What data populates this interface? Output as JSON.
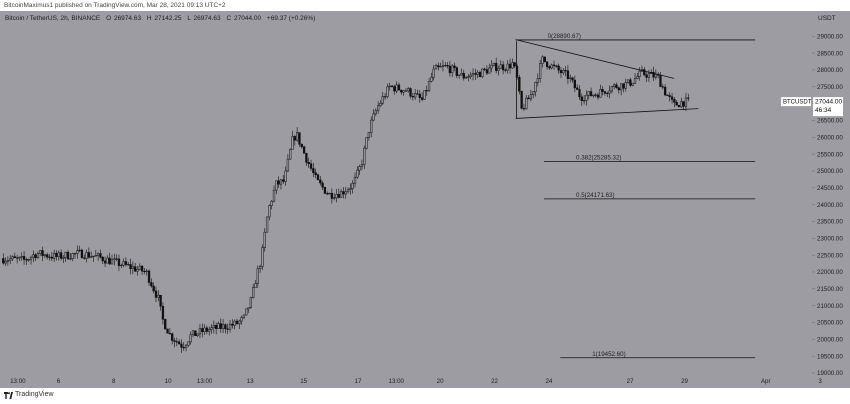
{
  "header": {
    "publish_line": "BitcoinMaximus1 published on TradingView.com, Mar 28, 2021 09:13 UTC+2"
  },
  "footer": {
    "brand": "TradingView"
  },
  "colors": {
    "background": "#9c9ca2",
    "candle": "#111111",
    "line": "#111111",
    "label_bg": "#ffffff",
    "label_text": "#111111",
    "axis_text": "#222222"
  },
  "chart_data": {
    "type": "candlestick",
    "legend": {
      "symbol": "Bitcoin / TetherUS, 2h, BINANCE",
      "o_label": "O",
      "o": "26974.63",
      "h_label": "H",
      "h": "27142.25",
      "l_label": "L",
      "l": "26974.63",
      "c_label": "C",
      "c": "27044.00",
      "change": "+69.37 (+0.26%)"
    },
    "currency": "USDT",
    "ylim": [
      19000,
      29750
    ],
    "y_ticks": [
      {
        "value": 29000,
        "label": "29000.00"
      },
      {
        "value": 28500,
        "label": "28500.00"
      },
      {
        "value": 28000,
        "label": "28000.00"
      },
      {
        "value": 27500,
        "label": "27500.00"
      },
      {
        "value": 27000,
        "label": "27000.00"
      },
      {
        "value": 26500,
        "label": "26500.00"
      },
      {
        "value": 26000,
        "label": "26000.00"
      },
      {
        "value": 25500,
        "label": "25500.00"
      },
      {
        "value": 25000,
        "label": "25000.00"
      },
      {
        "value": 24500,
        "label": "24500.00"
      },
      {
        "value": 24000,
        "label": "24000.00"
      },
      {
        "value": 23500,
        "label": "23500.00"
      },
      {
        "value": 23000,
        "label": "23000.00"
      },
      {
        "value": 22500,
        "label": "22500.00"
      },
      {
        "value": 22000,
        "label": "22000.00"
      },
      {
        "value": 21500,
        "label": "21500.00"
      },
      {
        "value": 21000,
        "label": "21000.00"
      },
      {
        "value": 20500,
        "label": "20500.00"
      },
      {
        "value": 20000,
        "label": "20000.00"
      },
      {
        "value": 19500,
        "label": "19500.00"
      },
      {
        "value": 19000,
        "label": "19000.00"
      }
    ],
    "x_ticks": [
      {
        "label": "13:00",
        "pos": 0.022
      },
      {
        "label": "6",
        "pos": 0.072
      },
      {
        "label": "8",
        "pos": 0.14
      },
      {
        "label": "10",
        "pos": 0.207
      },
      {
        "label": "13:00",
        "pos": 0.252
      },
      {
        "label": "13",
        "pos": 0.308
      },
      {
        "label": "15",
        "pos": 0.374
      },
      {
        "label": "17",
        "pos": 0.441
      },
      {
        "label": "13:00",
        "pos": 0.488
      },
      {
        "label": "20",
        "pos": 0.542
      },
      {
        "label": "22",
        "pos": 0.609
      },
      {
        "label": "24",
        "pos": 0.676
      },
      {
        "label": "27",
        "pos": 0.776
      },
      {
        "label": "29",
        "pos": 0.843
      },
      {
        "label": "Apr",
        "pos": 0.943
      },
      {
        "label": "3",
        "pos": 1.01
      }
    ],
    "price_marker": {
      "value": 27044.0,
      "symbol": "BTCUSDT",
      "price": "27044.00",
      "countdown": "46:34"
    },
    "fib_levels": [
      {
        "label": "0(28890.67)",
        "value": 28890.67,
        "from": 0.635,
        "to": 0.93
      },
      {
        "label": "0.382(25285.32)",
        "value": 25285.32,
        "from": 0.67,
        "to": 0.93
      },
      {
        "label": "0.5(24171.63)",
        "value": 24171.63,
        "from": 0.67,
        "to": 0.93
      },
      {
        "label": "1(19452.60)",
        "value": 19452.6,
        "from": 0.69,
        "to": 0.93
      }
    ],
    "trendlines": [
      {
        "from": [
          0.635,
          28900
        ],
        "to": [
          0.83,
          27750
        ]
      },
      {
        "from": [
          0.635,
          26560
        ],
        "to": [
          0.86,
          26850
        ]
      },
      {
        "from": [
          0.636,
          28850
        ],
        "to": [
          0.636,
          26560
        ]
      }
    ],
    "price_path": [
      [
        0.0,
        22400
      ],
      [
        0.03,
        22350
      ],
      [
        0.045,
        22550
      ],
      [
        0.07,
        22450
      ],
      [
        0.1,
        22550
      ],
      [
        0.12,
        22450
      ],
      [
        0.14,
        22300
      ],
      [
        0.16,
        22150
      ],
      [
        0.18,
        22000
      ],
      [
        0.195,
        21200
      ],
      [
        0.2,
        20600
      ],
      [
        0.21,
        20100
      ],
      [
        0.225,
        19800
      ],
      [
        0.235,
        20100
      ],
      [
        0.25,
        20250
      ],
      [
        0.27,
        20350
      ],
      [
        0.29,
        20450
      ],
      [
        0.3,
        20600
      ],
      [
        0.31,
        21200
      ],
      [
        0.315,
        21800
      ],
      [
        0.322,
        22400
      ],
      [
        0.33,
        23800
      ],
      [
        0.34,
        24600
      ],
      [
        0.35,
        24700
      ],
      [
        0.36,
        25900
      ],
      [
        0.365,
        26100
      ],
      [
        0.375,
        25500
      ],
      [
        0.39,
        24700
      ],
      [
        0.405,
        24300
      ],
      [
        0.42,
        24350
      ],
      [
        0.435,
        24600
      ],
      [
        0.445,
        25200
      ],
      [
        0.455,
        26300
      ],
      [
        0.465,
        26900
      ],
      [
        0.48,
        27500
      ],
      [
        0.5,
        27400
      ],
      [
        0.52,
        27100
      ],
      [
        0.535,
        28000
      ],
      [
        0.55,
        28100
      ],
      [
        0.57,
        27800
      ],
      [
        0.59,
        27900
      ],
      [
        0.61,
        28100
      ],
      [
        0.625,
        28100
      ],
      [
        0.632,
        28200
      ],
      [
        0.637,
        27700
      ],
      [
        0.642,
        26800
      ],
      [
        0.655,
        27300
      ],
      [
        0.668,
        28300
      ],
      [
        0.68,
        28100
      ],
      [
        0.7,
        27800
      ],
      [
        0.715,
        27200
      ],
      [
        0.735,
        27300
      ],
      [
        0.755,
        27500
      ],
      [
        0.775,
        27600
      ],
      [
        0.79,
        27900
      ],
      [
        0.81,
        27800
      ],
      [
        0.82,
        27300
      ],
      [
        0.83,
        26950
      ],
      [
        0.84,
        27050
      ],
      [
        0.85,
        27044
      ]
    ]
  }
}
